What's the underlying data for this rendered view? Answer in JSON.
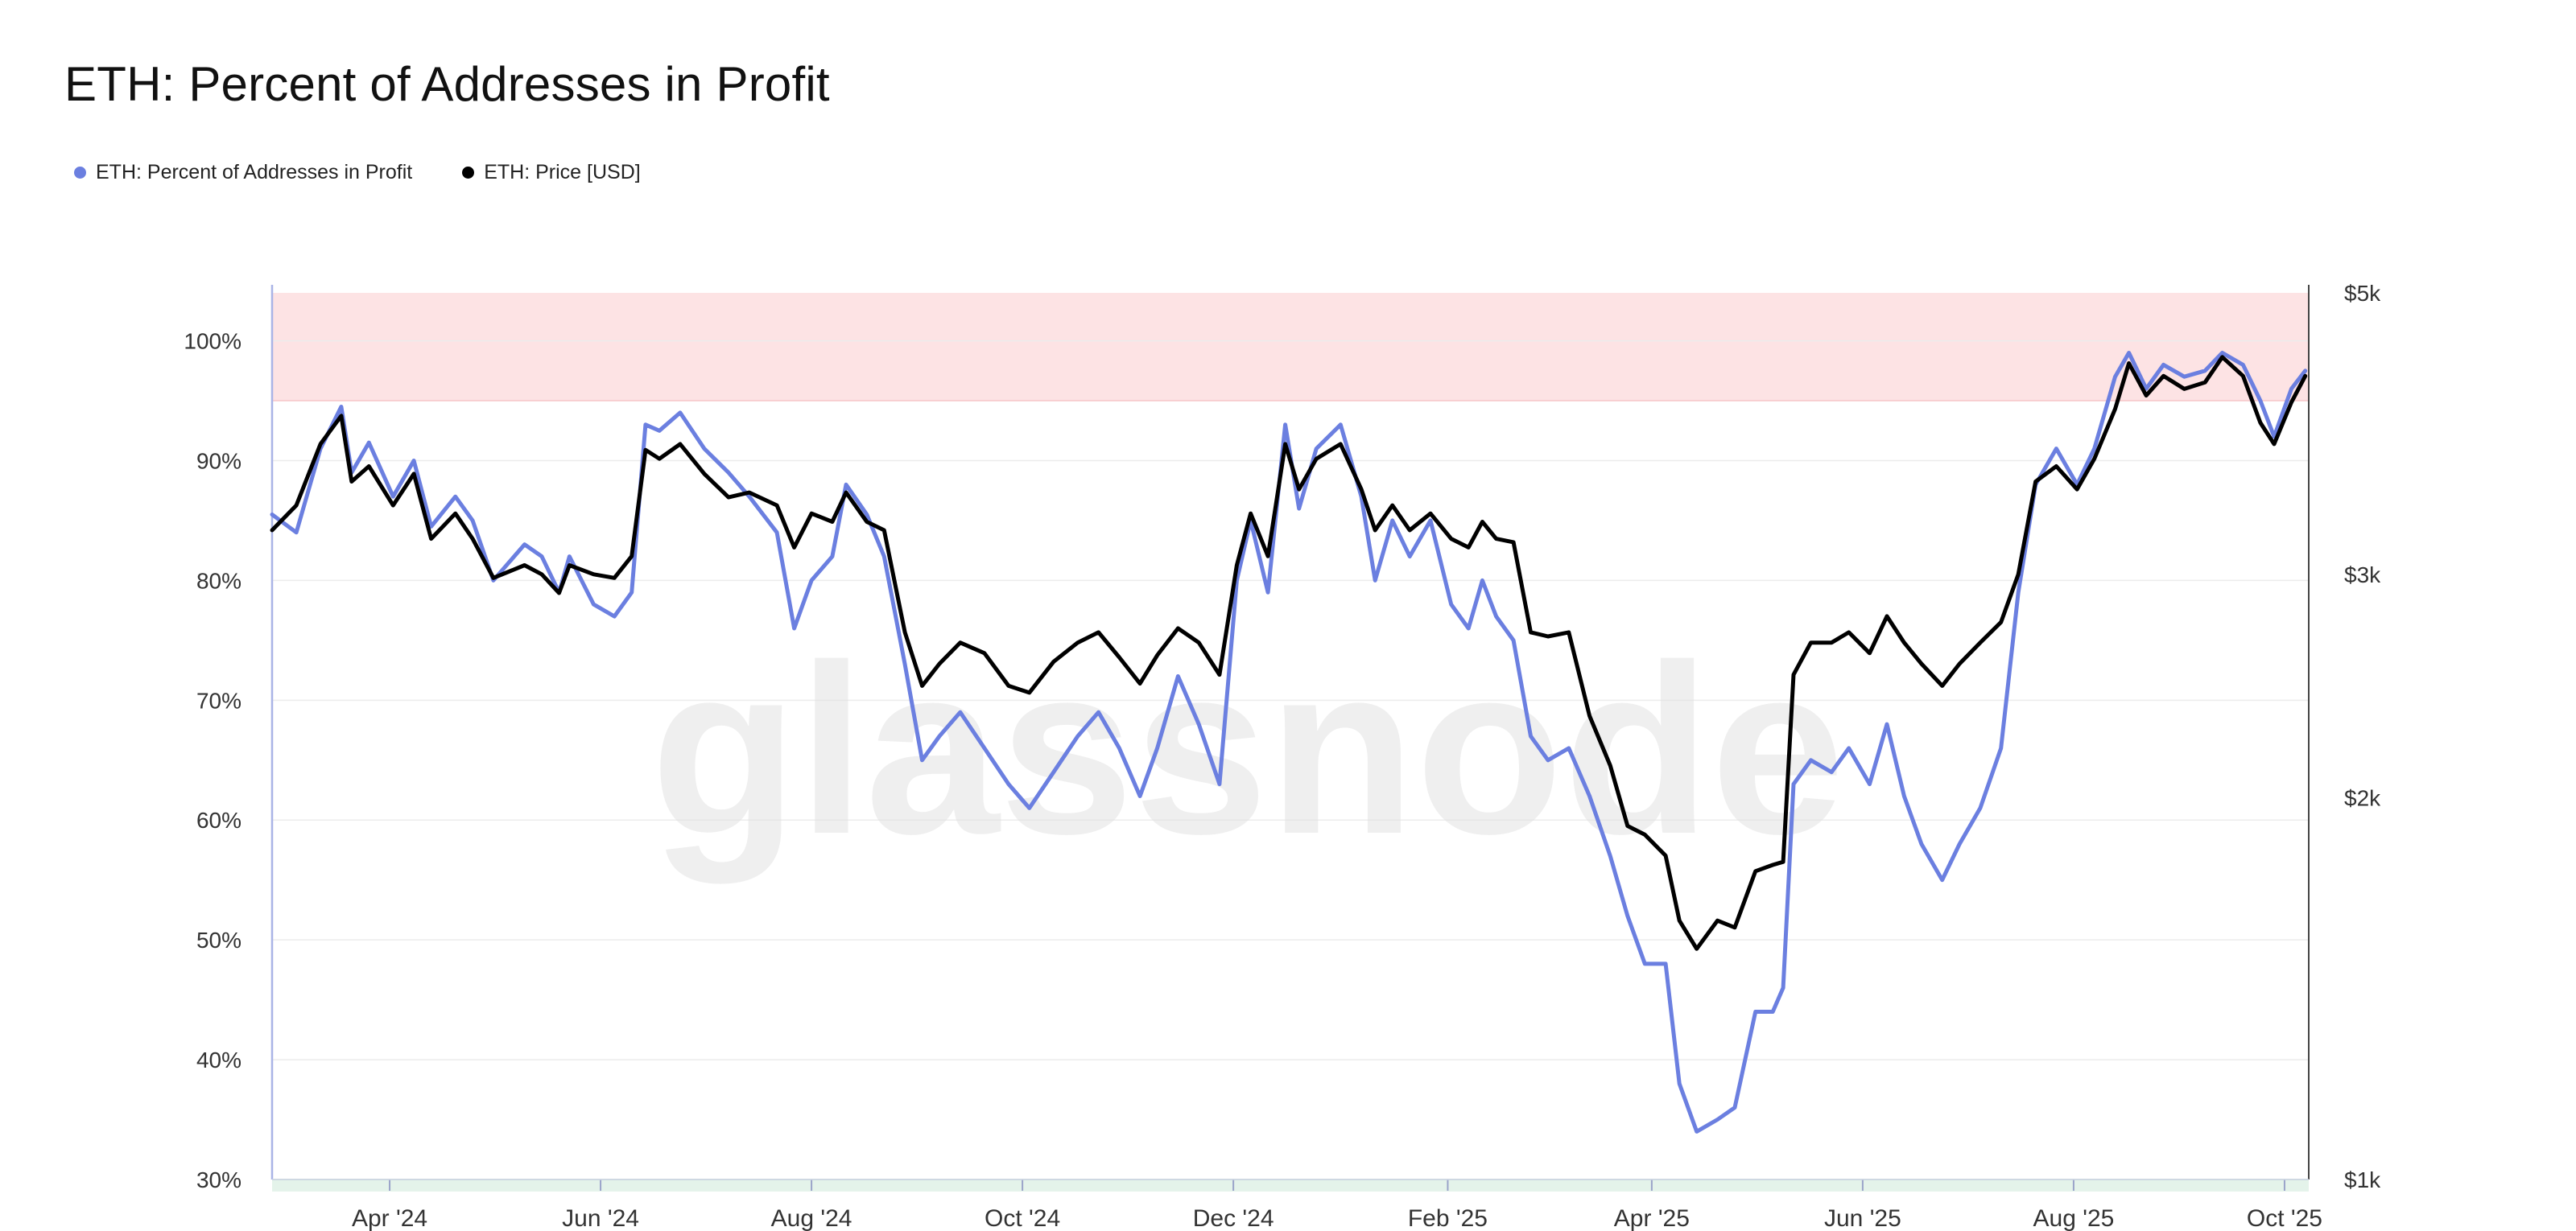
{
  "title": "ETH: Percent of Addresses in Profit",
  "watermark": "glassnode",
  "legend": [
    {
      "label": "ETH: Percent of Addresses in Profit",
      "color": "#6b7fe0"
    },
    {
      "label": "ETH: Price [USD]",
      "color": "#000000"
    }
  ],
  "colors": {
    "profit_line": "#6b7fe0",
    "price_line": "#000000",
    "upper_band": "#fde3e4",
    "lower_band": "#e4f3ea",
    "grid": "#ececec",
    "axis": "#aab4e6"
  },
  "chart_data": {
    "type": "line",
    "title": "ETH: Percent of Addresses in Profit",
    "x_range": [
      "2024-02-27",
      "2025-10-08"
    ],
    "x_ticks": [
      {
        "label": "Apr '24",
        "date": "2024-04-01"
      },
      {
        "label": "Jun '24",
        "date": "2024-06-01"
      },
      {
        "label": "Aug '24",
        "date": "2024-08-01"
      },
      {
        "label": "Oct '24",
        "date": "2024-10-01"
      },
      {
        "label": "Dec '24",
        "date": "2024-12-01"
      },
      {
        "label": "Feb '25",
        "date": "2025-02-01"
      },
      {
        "label": "Apr '25",
        "date": "2025-04-01"
      },
      {
        "label": "Jun '25",
        "date": "2025-06-01"
      },
      {
        "label": "Aug '25",
        "date": "2025-08-01"
      },
      {
        "label": "Oct '25",
        "date": "2025-10-01"
      }
    ],
    "y_left": {
      "range": [
        30,
        104
      ],
      "ticks": [
        {
          "value": 30,
          "label": "30%"
        },
        {
          "value": 40,
          "label": "40%"
        },
        {
          "value": 50,
          "label": "50%"
        },
        {
          "value": 60,
          "label": "60%"
        },
        {
          "value": 70,
          "label": "70%"
        },
        {
          "value": 80,
          "label": "80%"
        },
        {
          "value": 90,
          "label": "90%"
        },
        {
          "value": 100,
          "label": "100%"
        }
      ]
    },
    "y_right": {
      "scale": "log",
      "range": [
        1000,
        5000
      ],
      "ticks": [
        {
          "value": 1000,
          "label": "$1k"
        },
        {
          "value": 2000,
          "label": "$2k"
        },
        {
          "value": 3000,
          "label": "$3k"
        },
        {
          "value": 5000,
          "label": "$5k"
        }
      ]
    },
    "bands": [
      {
        "axis": "left",
        "from": 95,
        "to": 104
      },
      {
        "axis": "left",
        "from": 30,
        "to": 29
      }
    ],
    "series": [
      {
        "name": "ETH: Percent of Addresses in Profit",
        "axis": "left",
        "points": [
          [
            "2024-02-27",
            85.5
          ],
          [
            "2024-03-05",
            84
          ],
          [
            "2024-03-12",
            91
          ],
          [
            "2024-03-18",
            94.5
          ],
          [
            "2024-03-21",
            89
          ],
          [
            "2024-03-26",
            91.5
          ],
          [
            "2024-04-02",
            87
          ],
          [
            "2024-04-08",
            90
          ],
          [
            "2024-04-13",
            84.5
          ],
          [
            "2024-04-20",
            87
          ],
          [
            "2024-04-25",
            85
          ],
          [
            "2024-05-01",
            80
          ],
          [
            "2024-05-10",
            83
          ],
          [
            "2024-05-15",
            82
          ],
          [
            "2024-05-20",
            79
          ],
          [
            "2024-05-23",
            82
          ],
          [
            "2024-05-30",
            78
          ],
          [
            "2024-06-05",
            77
          ],
          [
            "2024-06-10",
            79
          ],
          [
            "2024-06-14",
            93
          ],
          [
            "2024-06-18",
            92.5
          ],
          [
            "2024-06-24",
            94
          ],
          [
            "2024-07-01",
            91
          ],
          [
            "2024-07-08",
            89
          ],
          [
            "2024-07-14",
            87
          ],
          [
            "2024-07-22",
            84
          ],
          [
            "2024-07-27",
            76
          ],
          [
            "2024-08-01",
            80
          ],
          [
            "2024-08-07",
            82
          ],
          [
            "2024-08-11",
            88
          ],
          [
            "2024-08-17",
            85.5
          ],
          [
            "2024-08-22",
            82
          ],
          [
            "2024-08-28",
            73
          ],
          [
            "2024-09-02",
            65
          ],
          [
            "2024-09-07",
            67
          ],
          [
            "2024-09-13",
            69
          ],
          [
            "2024-09-20",
            66
          ],
          [
            "2024-09-27",
            63
          ],
          [
            "2024-10-03",
            61
          ],
          [
            "2024-10-10",
            64
          ],
          [
            "2024-10-17",
            67
          ],
          [
            "2024-10-23",
            69
          ],
          [
            "2024-10-29",
            66
          ],
          [
            "2024-11-04",
            62
          ],
          [
            "2024-11-09",
            66
          ],
          [
            "2024-11-15",
            72
          ],
          [
            "2024-11-21",
            68
          ],
          [
            "2024-11-27",
            63
          ],
          [
            "2024-12-02",
            80
          ],
          [
            "2024-12-06",
            85
          ],
          [
            "2024-12-11",
            79
          ],
          [
            "2024-12-16",
            93
          ],
          [
            "2024-12-20",
            86
          ],
          [
            "2024-12-25",
            91
          ],
          [
            "2025-01-01",
            93
          ],
          [
            "2025-01-07",
            87
          ],
          [
            "2025-01-11",
            80
          ],
          [
            "2025-01-16",
            85
          ],
          [
            "2025-01-21",
            82
          ],
          [
            "2025-01-27",
            85
          ],
          [
            "2025-02-02",
            78
          ],
          [
            "2025-02-07",
            76
          ],
          [
            "2025-02-11",
            80
          ],
          [
            "2025-02-15",
            77
          ],
          [
            "2025-02-20",
            75
          ],
          [
            "2025-02-25",
            67
          ],
          [
            "2025-03-02",
            65
          ],
          [
            "2025-03-08",
            66
          ],
          [
            "2025-03-14",
            62
          ],
          [
            "2025-03-20",
            57
          ],
          [
            "2025-03-25",
            52
          ],
          [
            "2025-03-30",
            48
          ],
          [
            "2025-04-05",
            48
          ],
          [
            "2025-04-09",
            38
          ],
          [
            "2025-04-14",
            34
          ],
          [
            "2025-04-20",
            35
          ],
          [
            "2025-04-25",
            36
          ],
          [
            "2025-05-01",
            44
          ],
          [
            "2025-05-06",
            44
          ],
          [
            "2025-05-09",
            46
          ],
          [
            "2025-05-12",
            63
          ],
          [
            "2025-05-17",
            65
          ],
          [
            "2025-05-23",
            64
          ],
          [
            "2025-05-28",
            66
          ],
          [
            "2025-06-03",
            63
          ],
          [
            "2025-06-08",
            68
          ],
          [
            "2025-06-13",
            62
          ],
          [
            "2025-06-18",
            58
          ],
          [
            "2025-06-24",
            55
          ],
          [
            "2025-06-29",
            58
          ],
          [
            "2025-07-05",
            61
          ],
          [
            "2025-07-11",
            66
          ],
          [
            "2025-07-16",
            79
          ],
          [
            "2025-07-21",
            88
          ],
          [
            "2025-07-27",
            91
          ],
          [
            "2025-08-02",
            88
          ],
          [
            "2025-08-07",
            91
          ],
          [
            "2025-08-13",
            97
          ],
          [
            "2025-08-17",
            99
          ],
          [
            "2025-08-22",
            96
          ],
          [
            "2025-08-27",
            98
          ],
          [
            "2025-09-02",
            97
          ],
          [
            "2025-09-08",
            97.5
          ],
          [
            "2025-09-13",
            99
          ],
          [
            "2025-09-19",
            98
          ],
          [
            "2025-09-24",
            95
          ],
          [
            "2025-09-28",
            92
          ],
          [
            "2025-10-03",
            96
          ],
          [
            "2025-10-07",
            97.5
          ]
        ]
      },
      {
        "name": "ETH: Price [USD]",
        "axis": "right",
        "points": [
          [
            "2024-02-27",
            3250
          ],
          [
            "2024-03-05",
            3400
          ],
          [
            "2024-03-12",
            3800
          ],
          [
            "2024-03-18",
            4000
          ],
          [
            "2024-03-21",
            3550
          ],
          [
            "2024-03-26",
            3650
          ],
          [
            "2024-04-02",
            3400
          ],
          [
            "2024-04-08",
            3600
          ],
          [
            "2024-04-13",
            3200
          ],
          [
            "2024-04-20",
            3350
          ],
          [
            "2024-04-25",
            3200
          ],
          [
            "2024-05-01",
            2980
          ],
          [
            "2024-05-10",
            3050
          ],
          [
            "2024-05-15",
            3000
          ],
          [
            "2024-05-20",
            2900
          ],
          [
            "2024-05-23",
            3050
          ],
          [
            "2024-05-30",
            3000
          ],
          [
            "2024-06-05",
            2980
          ],
          [
            "2024-06-10",
            3100
          ],
          [
            "2024-06-14",
            3760
          ],
          [
            "2024-06-18",
            3700
          ],
          [
            "2024-06-24",
            3800
          ],
          [
            "2024-07-01",
            3600
          ],
          [
            "2024-07-08",
            3450
          ],
          [
            "2024-07-14",
            3480
          ],
          [
            "2024-07-22",
            3400
          ],
          [
            "2024-07-27",
            3150
          ],
          [
            "2024-08-01",
            3350
          ],
          [
            "2024-08-07",
            3300
          ],
          [
            "2024-08-11",
            3480
          ],
          [
            "2024-08-17",
            3300
          ],
          [
            "2024-08-22",
            3250
          ],
          [
            "2024-08-28",
            2700
          ],
          [
            "2024-09-02",
            2450
          ],
          [
            "2024-09-07",
            2550
          ],
          [
            "2024-09-13",
            2650
          ],
          [
            "2024-09-20",
            2600
          ],
          [
            "2024-09-27",
            2450
          ],
          [
            "2024-10-03",
            2420
          ],
          [
            "2024-10-10",
            2560
          ],
          [
            "2024-10-17",
            2650
          ],
          [
            "2024-10-23",
            2700
          ],
          [
            "2024-10-29",
            2580
          ],
          [
            "2024-11-04",
            2460
          ],
          [
            "2024-11-09",
            2590
          ],
          [
            "2024-11-15",
            2720
          ],
          [
            "2024-11-21",
            2650
          ],
          [
            "2024-11-27",
            2500
          ],
          [
            "2024-12-02",
            3050
          ],
          [
            "2024-12-06",
            3350
          ],
          [
            "2024-12-11",
            3100
          ],
          [
            "2024-12-16",
            3800
          ],
          [
            "2024-12-20",
            3500
          ],
          [
            "2024-12-25",
            3700
          ],
          [
            "2025-01-01",
            3800
          ],
          [
            "2025-01-07",
            3500
          ],
          [
            "2025-01-11",
            3250
          ],
          [
            "2025-01-16",
            3400
          ],
          [
            "2025-01-21",
            3250
          ],
          [
            "2025-01-27",
            3350
          ],
          [
            "2025-02-02",
            3200
          ],
          [
            "2025-02-07",
            3150
          ],
          [
            "2025-02-11",
            3300
          ],
          [
            "2025-02-15",
            3200
          ],
          [
            "2025-02-20",
            3180
          ],
          [
            "2025-02-25",
            2700
          ],
          [
            "2025-03-02",
            2680
          ],
          [
            "2025-03-08",
            2700
          ],
          [
            "2025-03-14",
            2320
          ],
          [
            "2025-03-20",
            2120
          ],
          [
            "2025-03-25",
            1900
          ],
          [
            "2025-03-30",
            1870
          ],
          [
            "2025-04-05",
            1800
          ],
          [
            "2025-04-09",
            1600
          ],
          [
            "2025-04-14",
            1520
          ],
          [
            "2025-04-20",
            1600
          ],
          [
            "2025-04-25",
            1580
          ],
          [
            "2025-05-01",
            1750
          ],
          [
            "2025-05-06",
            1770
          ],
          [
            "2025-05-09",
            1780
          ],
          [
            "2025-05-12",
            2500
          ],
          [
            "2025-05-17",
            2650
          ],
          [
            "2025-05-23",
            2650
          ],
          [
            "2025-05-28",
            2700
          ],
          [
            "2025-06-03",
            2600
          ],
          [
            "2025-06-08",
            2780
          ],
          [
            "2025-06-13",
            2650
          ],
          [
            "2025-06-18",
            2550
          ],
          [
            "2025-06-24",
            2450
          ],
          [
            "2025-06-29",
            2550
          ],
          [
            "2025-07-05",
            2650
          ],
          [
            "2025-07-11",
            2750
          ],
          [
            "2025-07-16",
            3000
          ],
          [
            "2025-07-21",
            3550
          ],
          [
            "2025-07-27",
            3650
          ],
          [
            "2025-08-02",
            3500
          ],
          [
            "2025-08-07",
            3700
          ],
          [
            "2025-08-13",
            4050
          ],
          [
            "2025-08-17",
            4400
          ],
          [
            "2025-08-22",
            4150
          ],
          [
            "2025-08-27",
            4300
          ],
          [
            "2025-09-02",
            4200
          ],
          [
            "2025-09-08",
            4250
          ],
          [
            "2025-09-13",
            4450
          ],
          [
            "2025-09-19",
            4300
          ],
          [
            "2025-09-24",
            3950
          ],
          [
            "2025-09-28",
            3800
          ],
          [
            "2025-10-03",
            4100
          ],
          [
            "2025-10-07",
            4300
          ]
        ]
      }
    ]
  }
}
